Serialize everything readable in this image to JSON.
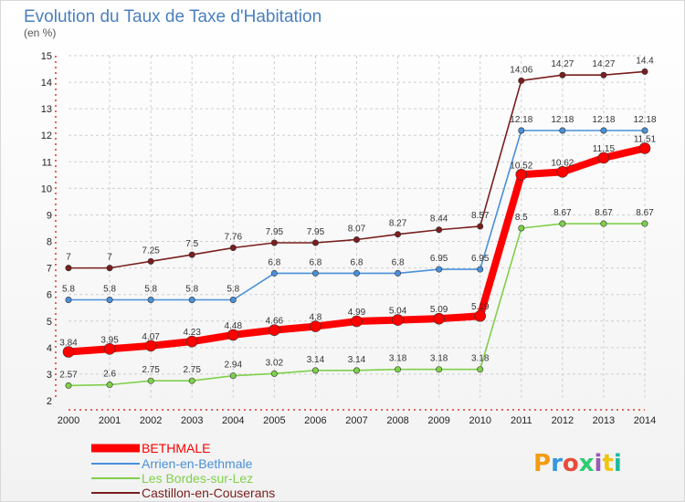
{
  "title": "Evolution du Taux de Taxe d'Habitation",
  "subtitle": "(en %)",
  "logo_text": "Proxiti",
  "chart_data": {
    "type": "line",
    "title": "Evolution du Taux de Taxe d'Habitation",
    "ylabel": "(en %)",
    "x": [
      "2000",
      "2001",
      "2002",
      "2003",
      "2004",
      "2005",
      "2006",
      "2007",
      "2008",
      "2009",
      "2010",
      "2011",
      "2012",
      "2013",
      "2014"
    ],
    "ylim": [
      2,
      15
    ],
    "yticks": [
      "2",
      "3",
      "4",
      "5",
      "6",
      "7",
      "8",
      "9",
      "10",
      "11",
      "12",
      "13",
      "14",
      "15"
    ],
    "legend_position": "bottom-left",
    "series": [
      {
        "name": "BETHMALE",
        "color": "#ff0000",
        "values": [
          3.84,
          3.95,
          4.07,
          4.23,
          4.48,
          4.66,
          4.8,
          4.99,
          5.04,
          5.09,
          5.19,
          10.52,
          10.62,
          11.15,
          11.51
        ],
        "labels": [
          "3.84",
          "3.95",
          "4.07",
          "4.23",
          "4.48",
          "4.66",
          "4.8",
          "4.99",
          "5.04",
          "5.09",
          "5.19",
          "10.52",
          "10.62",
          "11.15",
          "11.51"
        ]
      },
      {
        "name": "Arrien-en-Bethmale",
        "color": "#4a90d9",
        "values": [
          5.8,
          5.8,
          5.8,
          5.8,
          5.8,
          6.8,
          6.8,
          6.8,
          6.8,
          6.95,
          6.95,
          12.18,
          12.18,
          12.18,
          12.18
        ],
        "labels": [
          "5.8",
          "5.8",
          "5.8",
          "5.8",
          "5.8",
          "6.8",
          "6.8",
          "6.8",
          "6.8",
          "6.95",
          "6.95",
          "12.18",
          "12.18",
          "12.18",
          "12.18"
        ]
      },
      {
        "name": "Les Bordes-sur-Lez",
        "color": "#7fd04a",
        "values": [
          2.57,
          2.6,
          2.75,
          2.75,
          2.94,
          3.02,
          3.14,
          3.14,
          3.18,
          3.18,
          3.18,
          8.5,
          8.67,
          8.67,
          8.67
        ],
        "labels": [
          "2.57",
          "2.6",
          "2.75",
          "2.75",
          "2.94",
          "3.02",
          "3.14",
          "3.14",
          "3.18",
          "3.18",
          "3.18",
          "8.5",
          "8.67",
          "8.67",
          "8.67"
        ]
      },
      {
        "name": "Castillon-en-Couserans",
        "color": "#7a1e1e",
        "values": [
          7,
          7,
          7.25,
          7.5,
          7.76,
          7.95,
          7.95,
          8.07,
          8.27,
          8.44,
          8.57,
          14.06,
          14.27,
          14.27,
          14.4
        ],
        "labels": [
          "7",
          "7",
          "7.25",
          "7.5",
          "7.76",
          "7.95",
          "7.95",
          "8.07",
          "8.27",
          "8.44",
          "8.57",
          "14.06",
          "14.27",
          "14.27",
          "14.4"
        ]
      }
    ]
  }
}
